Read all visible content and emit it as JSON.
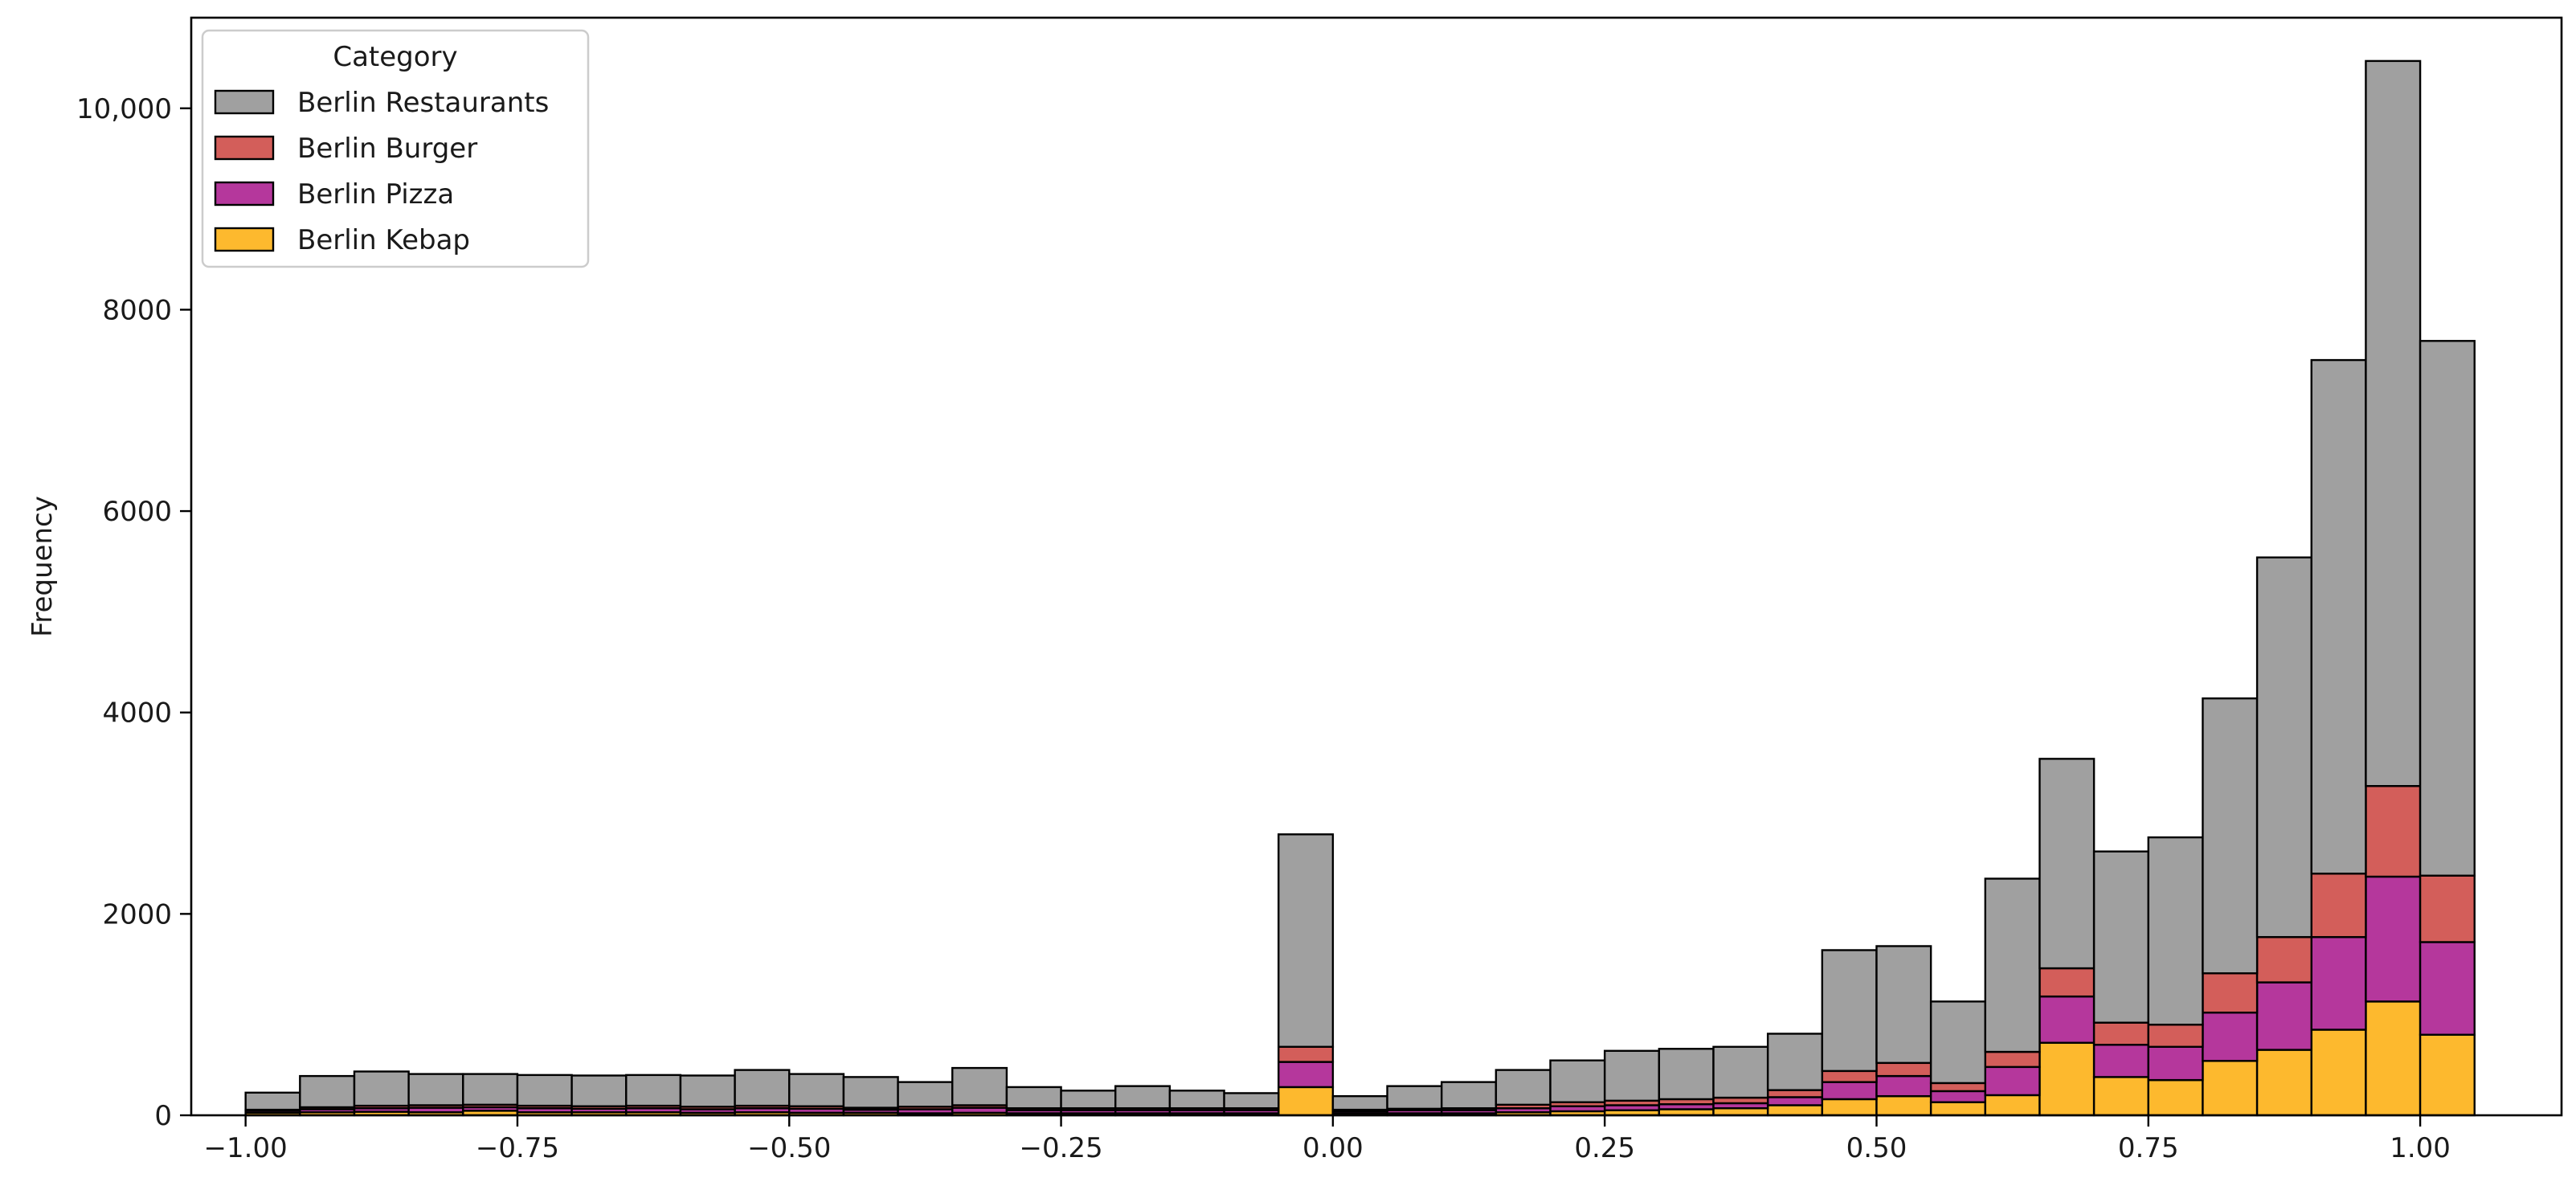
{
  "chart_data": {
    "type": "bar",
    "stacked": true,
    "title": "",
    "xlabel": "",
    "ylabel": "Frequency",
    "xlim": [
      -1.05,
      1.13
    ],
    "ylim": [
      0,
      10900
    ],
    "bin_start": -1.0,
    "bin_width": 0.05,
    "xticks": [
      -1.0,
      -0.75,
      -0.5,
      -0.25,
      0.0,
      0.25,
      0.5,
      0.75,
      1.0
    ],
    "xtick_labels": [
      "−1.00",
      "−0.75",
      "−0.50",
      "−0.25",
      "0.00",
      "0.25",
      "0.50",
      "0.75",
      "1.00"
    ],
    "yticks": [
      0,
      2000,
      4000,
      6000,
      8000,
      10000
    ],
    "ytick_labels": [
      "0",
      "2000",
      "4000",
      "6000",
      "8000",
      "10,000"
    ],
    "grid": false,
    "legend": {
      "title": "Category",
      "position": "top-left",
      "entries": [
        "Berlin Restaurants",
        "Berlin Burger",
        "Berlin Pizza",
        "Berlin Kebap"
      ]
    },
    "series": [
      {
        "name": "Berlin Kebap",
        "color": "#fdb92e",
        "values": [
          25,
          30,
          35,
          30,
          45,
          30,
          30,
          30,
          25,
          30,
          25,
          25,
          20,
          25,
          20,
          20,
          20,
          20,
          20,
          280,
          20,
          20,
          20,
          30,
          40,
          50,
          60,
          70,
          100,
          160,
          190,
          130,
          200,
          720,
          380,
          350,
          540,
          650,
          850,
          1130,
          800
        ]
      },
      {
        "name": "Berlin Pizza",
        "color": "#b5379c",
        "values": [
          20,
          30,
          35,
          45,
          35,
          40,
          35,
          40,
          35,
          40,
          40,
          30,
          40,
          50,
          30,
          30,
          30,
          30,
          30,
          250,
          20,
          30,
          30,
          40,
          50,
          50,
          50,
          50,
          80,
          170,
          200,
          110,
          280,
          460,
          320,
          330,
          480,
          670,
          920,
          1240,
          920
        ]
      },
      {
        "name": "Berlin Burger",
        "color": "#d35e5a",
        "values": [
          10,
          20,
          25,
          25,
          25,
          25,
          25,
          25,
          25,
          25,
          25,
          20,
          25,
          25,
          20,
          20,
          20,
          20,
          20,
          150,
          15,
          15,
          20,
          35,
          40,
          45,
          50,
          55,
          70,
          110,
          130,
          80,
          150,
          280,
          220,
          220,
          390,
          450,
          630,
          900,
          660
        ]
      },
      {
        "name": "Berlin Restaurants",
        "color": "#a0a0a0",
        "values": [
          170,
          310,
          340,
          310,
          305,
          305,
          305,
          305,
          310,
          355,
          320,
          305,
          245,
          370,
          210,
          175,
          220,
          175,
          150,
          2110,
          135,
          225,
          260,
          345,
          415,
          495,
          500,
          505,
          560,
          1200,
          1160,
          810,
          1720,
          2080,
          1700,
          1860,
          2730,
          3770,
          5100,
          7200,
          5310
        ]
      }
    ]
  }
}
